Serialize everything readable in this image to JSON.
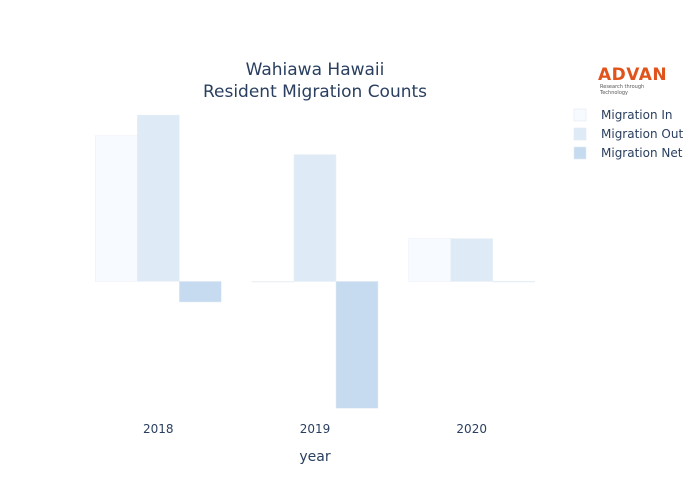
{
  "chart_data": {
    "type": "bar",
    "title_lines": [
      "Wahiawa Hawaii",
      "Resident Migration Counts"
    ],
    "xlabel": "year",
    "ylabel": "",
    "categories": [
      "2018",
      "2019",
      "2020"
    ],
    "series": [
      {
        "name": "Migration In",
        "color": "#f7fbff",
        "values": [
          85,
          0,
          25
        ]
      },
      {
        "name": "Migration Out",
        "color": "#deebf7",
        "values": [
          97,
          74,
          25
        ]
      },
      {
        "name": "Migration Net",
        "color": "#c6dbef",
        "values": [
          -12,
          -74,
          0
        ]
      }
    ],
    "ylim": [
      -75,
      100
    ],
    "grid": false,
    "legend_position": "top-right"
  },
  "logo": {
    "word": "ADVAN",
    "tagline": "Research through Technology"
  }
}
